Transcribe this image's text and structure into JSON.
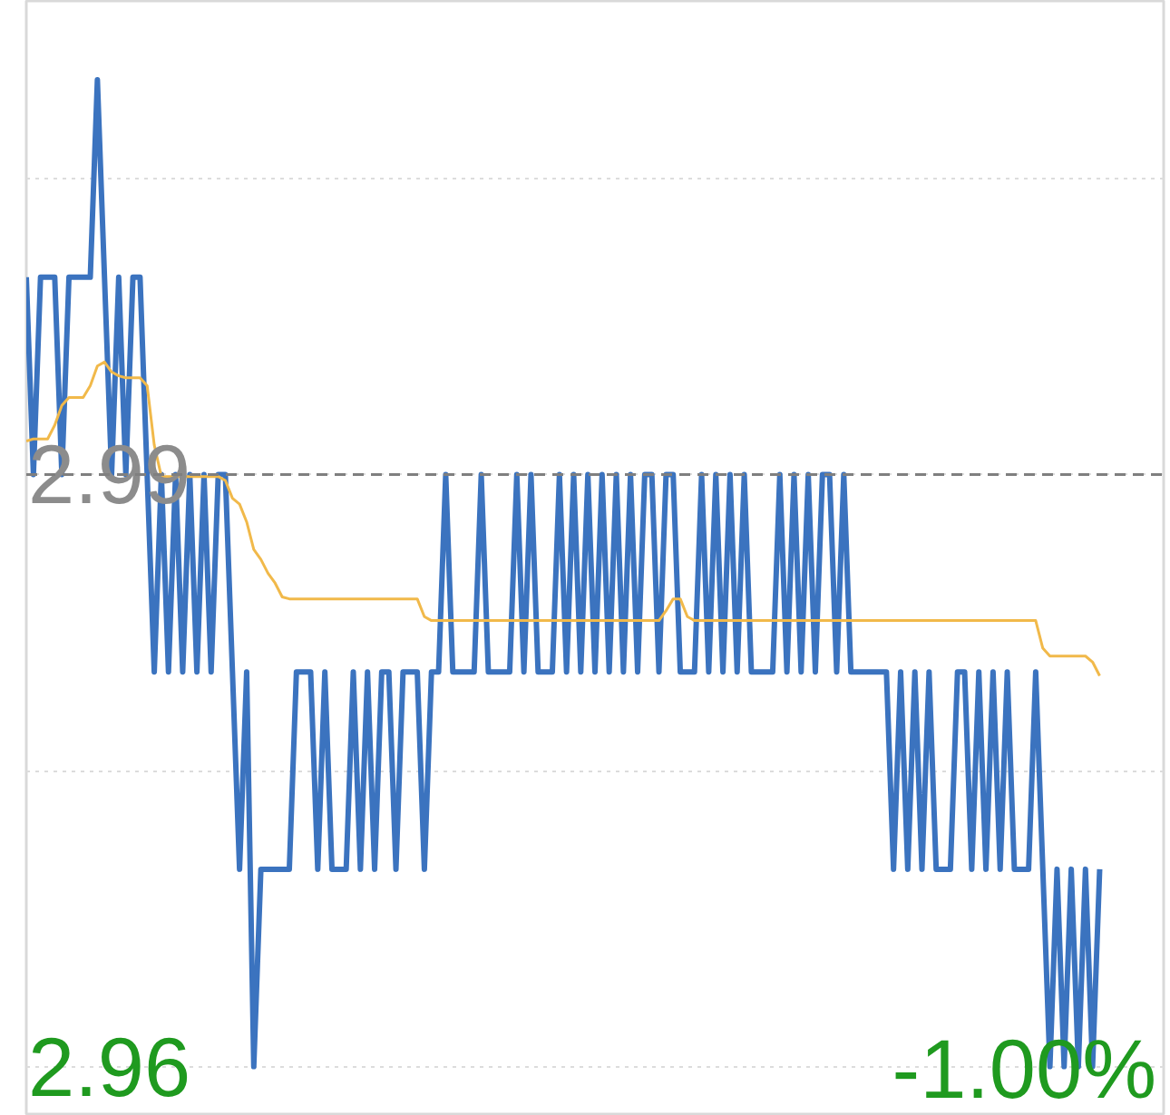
{
  "chart_data": {
    "type": "line",
    "categories": [
      null,
      null,
      null,
      null,
      null,
      null,
      null,
      null,
      null,
      null,
      null,
      null,
      null,
      null,
      null,
      null,
      null,
      null,
      null,
      null,
      null,
      null,
      null,
      null,
      null,
      null,
      null,
      null,
      null,
      null,
      null,
      null,
      null,
      null,
      null,
      null,
      null,
      null,
      null,
      null,
      null,
      null,
      null,
      null,
      null,
      null,
      null,
      null,
      null,
      null,
      null,
      null,
      null,
      null,
      null,
      null,
      null,
      null,
      null,
      null,
      null,
      null,
      null,
      null,
      null,
      null,
      null,
      null,
      null,
      null,
      null,
      null,
      null,
      null,
      null,
      null,
      null,
      null,
      null,
      null,
      null,
      null,
      null,
      null,
      null,
      null,
      null,
      null,
      null,
      null,
      null,
      null,
      null,
      null,
      null,
      null,
      null,
      null,
      null,
      null,
      null,
      null,
      null,
      null,
      null,
      null,
      null,
      null,
      null,
      null,
      null,
      null,
      null,
      null,
      null,
      null,
      null,
      null,
      null,
      null,
      null,
      null,
      null,
      null,
      null,
      null,
      null,
      null,
      null,
      null,
      null,
      null,
      null,
      null,
      null,
      null,
      null,
      null,
      null,
      null,
      null,
      null,
      null,
      null,
      null,
      null,
      null,
      null,
      null,
      null,
      null,
      null,
      null,
      null,
      null,
      null,
      null,
      null,
      null,
      null,
      null
    ],
    "series": [
      {
        "color": "#3b73bf",
        "values": [
          3.0,
          2.99,
          3.0,
          3.0,
          3.0,
          2.99,
          3.0,
          3.0,
          3.0,
          3.0,
          3.01,
          3.0,
          2.99,
          3.0,
          2.99,
          3.0,
          3.0,
          2.99,
          2.98,
          2.99,
          2.98,
          2.99,
          2.98,
          2.99,
          2.98,
          2.99,
          2.98,
          2.99,
          2.99,
          2.98,
          2.97,
          2.98,
          2.96,
          2.97,
          2.97,
          2.97,
          2.97,
          2.97,
          2.98,
          2.98,
          2.98,
          2.97,
          2.98,
          2.97,
          2.97,
          2.97,
          2.98,
          2.97,
          2.98,
          2.97,
          2.98,
          2.98,
          2.97,
          2.98,
          2.98,
          2.98,
          2.97,
          2.98,
          2.98,
          2.99,
          2.98,
          2.98,
          2.98,
          2.98,
          2.99,
          2.98,
          2.98,
          2.98,
          2.98,
          2.99,
          2.98,
          2.99,
          2.98,
          2.98,
          2.98,
          2.99,
          2.98,
          2.99,
          2.98,
          2.99,
          2.98,
          2.99,
          2.98,
          2.99,
          2.98,
          2.99,
          2.98,
          2.99,
          2.99,
          2.98,
          2.99,
          2.99,
          2.98,
          2.98,
          2.98,
          2.99,
          2.98,
          2.99,
          2.98,
          2.99,
          2.98,
          2.99,
          2.98,
          2.98,
          2.98,
          2.98,
          2.99,
          2.98,
          2.99,
          2.98,
          2.99,
          2.98,
          2.99,
          2.99,
          2.98,
          2.99,
          2.98,
          2.98,
          2.98,
          2.98,
          2.98,
          2.98,
          2.97,
          2.98,
          2.97,
          2.98,
          2.97,
          2.98,
          2.97,
          2.97,
          2.97,
          2.98,
          2.98,
          2.97,
          2.98,
          2.97,
          2.98,
          2.97,
          2.98,
          2.97,
          2.97,
          2.97,
          2.98,
          2.97,
          2.96,
          2.97,
          2.96,
          2.97,
          2.96,
          2.97,
          2.96,
          2.97,
          null,
          null,
          null,
          null,
          null,
          null,
          null,
          null,
          null
        ]
      },
      {
        "color": "#f1b94a",
        "values": [
          2.9917,
          2.9918,
          2.9918,
          2.9918,
          2.9925,
          2.9935,
          2.9939,
          2.9939,
          2.9939,
          2.9945,
          2.9955,
          2.9957,
          2.9952,
          2.995,
          2.9949,
          2.9949,
          2.9949,
          2.9945,
          2.9915,
          2.9899,
          2.9899,
          2.9899,
          2.9899,
          2.9899,
          2.9899,
          2.9899,
          2.9899,
          2.9899,
          2.9897,
          2.9888,
          2.9885,
          2.9876,
          2.9862,
          2.9857,
          2.985,
          2.9845,
          2.9838,
          2.9837,
          2.9837,
          2.9837,
          2.9837,
          2.9837,
          2.9837,
          2.9837,
          2.9837,
          2.9837,
          2.9837,
          2.9837,
          2.9837,
          2.9837,
          2.9837,
          2.9837,
          2.9837,
          2.9837,
          2.9837,
          2.9837,
          2.9828,
          2.9826,
          2.9826,
          2.9826,
          2.9826,
          2.9826,
          2.9826,
          2.9826,
          2.9826,
          2.9826,
          2.9826,
          2.9826,
          2.9826,
          2.9826,
          2.9826,
          2.9826,
          2.9826,
          2.9826,
          2.9826,
          2.9826,
          2.9826,
          2.9826,
          2.9826,
          2.9826,
          2.9826,
          2.9826,
          2.9826,
          2.9826,
          2.9826,
          2.9826,
          2.9826,
          2.9826,
          2.9826,
          2.9826,
          2.9831,
          2.9837,
          2.9837,
          2.9828,
          2.9826,
          2.9826,
          2.9826,
          2.9826,
          2.9826,
          2.9826,
          2.9826,
          2.9826,
          2.9826,
          2.9826,
          2.9826,
          2.9826,
          2.9826,
          2.9826,
          2.9826,
          2.9826,
          2.9826,
          2.9826,
          2.9826,
          2.9826,
          2.9826,
          2.9826,
          2.9826,
          2.9826,
          2.9826,
          2.9826,
          2.9826,
          2.9826,
          2.9826,
          2.9826,
          2.9826,
          2.9826,
          2.9826,
          2.9826,
          2.9826,
          2.9826,
          2.9826,
          2.9826,
          2.9826,
          2.9826,
          2.9826,
          2.9826,
          2.9826,
          2.9826,
          2.9826,
          2.9826,
          2.9826,
          2.9826,
          2.9826,
          2.9812,
          2.9808,
          2.9808,
          2.9808,
          2.9808,
          2.9808,
          2.9808,
          2.9805,
          2.9798,
          null,
          null,
          null,
          null,
          null,
          null,
          null,
          null,
          null
        ]
      }
    ],
    "ylim": [
      2.9575,
      3.014
    ],
    "yticks": [
      2.96,
      {
        "value": 2.975,
        "label": null
      },
      2.99,
      {
        "value": 3.005,
        "label": null
      }
    ],
    "tick_labels": "y",
    "grid": "y",
    "ref_lines": [
      {
        "axis": "y",
        "value": 2.99,
        "color": "#7f7f7f",
        "line_style": "dashed"
      }
    ],
    "annotations": [
      "-1.00%"
    ]
  }
}
